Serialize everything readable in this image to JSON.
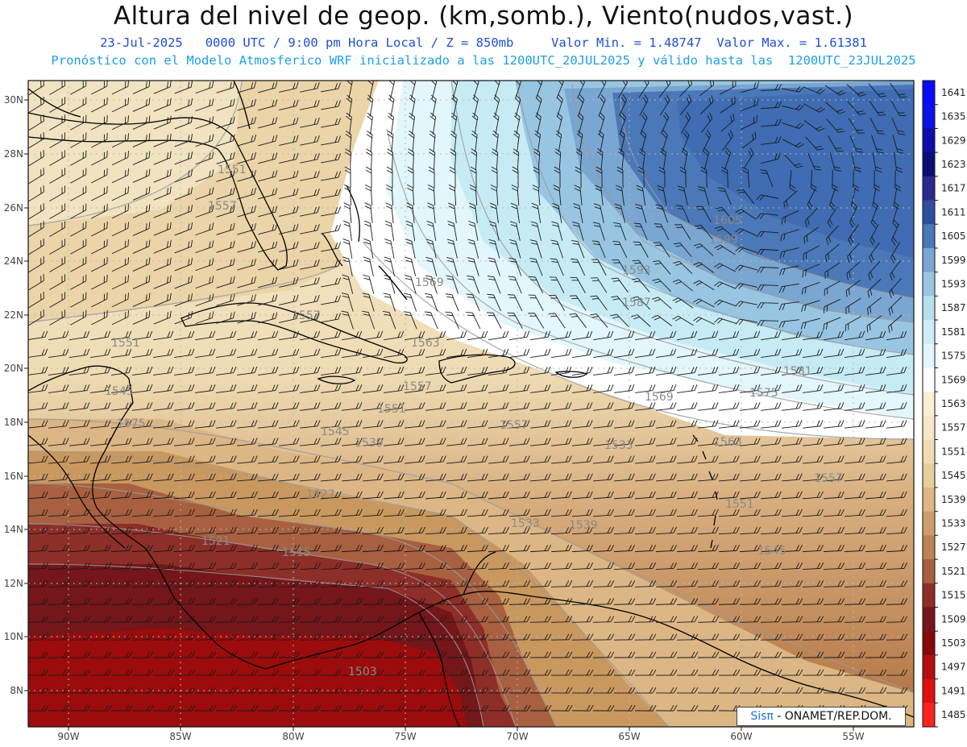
{
  "header": {
    "title": "Altura del nivel de geop. (km,somb.), Viento(nudos,vast.)",
    "line1": "23-Jul-2025   0000 UTC / 9:00 pm Hora Local / Z = 850mb     Valor Min. = 1.48747  Valor Max. = 1.61381",
    "line2": "Pronóstico con el Modelo Atmosferico WRF inicializado a las 1200UTC_20JUL2025 y válido hasta las  1200UTC_23JUL2025"
  },
  "map": {
    "lon_labels": [
      "90W",
      "85W",
      "80W",
      "75W",
      "70W",
      "65W",
      "60W",
      "55W"
    ],
    "lat_labels": [
      "30N",
      "28N",
      "26N",
      "24N",
      "22N",
      "20N",
      "18N",
      "16N",
      "14N",
      "12N",
      "10N",
      "8N"
    ],
    "contour_labels": [
      "1551",
      "1557",
      "1551",
      "1545",
      "1569",
      "1593",
      "1587",
      "1605",
      "1599",
      "1563",
      "1581",
      "1575",
      "1569",
      "1557",
      "1551",
      "1557",
      "1545",
      "1539",
      "1533",
      "1527",
      "1521",
      "1515",
      "1503",
      "1533",
      "1539",
      "1563",
      "1557",
      "1551",
      "1545",
      "1557",
      "1575"
    ]
  },
  "colorbar": {
    "labels": [
      "1641",
      "1635",
      "1629",
      "1623",
      "1617",
      "1611",
      "1605",
      "1599",
      "1593",
      "1587",
      "1581",
      "1575",
      "1569",
      "1563",
      "1557",
      "1551",
      "1545",
      "1539",
      "1533",
      "1527",
      "1521",
      "1515",
      "1509",
      "1503",
      "1497",
      "1491",
      "1485"
    ],
    "colors": [
      "#0a0aff",
      "#0a14e6",
      "#0c0ea8",
      "#0d0d78",
      "#2a2a8e",
      "#2e4f9e",
      "#4a78b8",
      "#7aa6d2",
      "#98c6e2",
      "#b6e0ef",
      "#cdeef6",
      "#e2f6fb",
      "#ffffff",
      "#fbf0d4",
      "#f6e8c6",
      "#f0dcb2",
      "#e8cc9a",
      "#dcb684",
      "#cc9e6a",
      "#bb8454",
      "#a86040",
      "#8e2e28",
      "#74161a",
      "#860a0a",
      "#b40e0e",
      "#e01010",
      "#ff2222"
    ]
  },
  "credit": {
    "sis": "Sisπ",
    "rest": " - ONAMET/REP.DOM."
  }
}
